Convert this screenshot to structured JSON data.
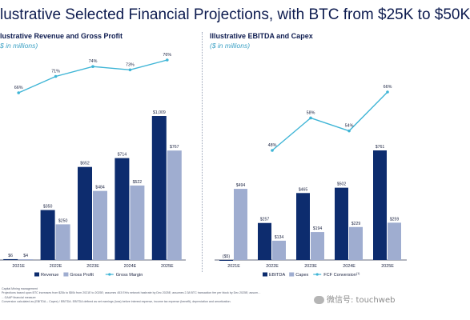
{
  "page": {
    "title": "lustrative Selected Financial Projections, with BTC from $25K to $50K",
    "footnotes": [
      "Capital Mining management",
      "Projections based upon BTC increases from $25k to $50k from 2021E to 2025E; assumes 453 EH/s network hashrate by Dec 2025E; assumes 2.38 BTC transaction fee per block by Dec 2025E; assum…",
      "…GAAP financial measure",
      "Conversion calculated as (EBITDA – Capex) / EBITDA. EBITDA defined as net earnings (loss) before interest expense, income tax expense (benefit), depreciation and amortization."
    ],
    "watermark": "微信号: touchweb"
  },
  "chart_data": [
    {
      "type": "bar",
      "title": "lustrative Revenue and Gross Profit",
      "subtitle": "$ in millions)",
      "categories": [
        "2021E",
        "2022E",
        "2023E",
        "2024E",
        "2025E"
      ],
      "series": [
        {
          "name": "Revenue",
          "color": "#0d2c6e",
          "values": [
            6,
            350,
            652,
            714,
            1009
          ],
          "labels": [
            "$6",
            "$350",
            "$652",
            "$714",
            "$1,009"
          ]
        },
        {
          "name": "Gross Profit",
          "color": "#9fadd0",
          "values": [
            4,
            250,
            484,
            522,
            767
          ],
          "labels": [
            "$4",
            "$250",
            "$484",
            "$522",
            "$767"
          ]
        }
      ],
      "line": {
        "name": "Gross Margin",
        "color": "#3fb5d6",
        "values": [
          66,
          71,
          74,
          73,
          76
        ],
        "labels": [
          "66%",
          "71%",
          "74%",
          "73%",
          "76%"
        ]
      }
    },
    {
      "type": "bar",
      "title": "Illustrative EBITDA and Capex",
      "subtitle": "($ in millions)",
      "categories": [
        "2021E",
        "2022E",
        "2023E",
        "2024E",
        "2025E"
      ],
      "series": [
        {
          "name": "EBITDA",
          "color": "#0d2c6e",
          "values": [
            -5,
            257,
            465,
            502,
            761
          ],
          "labels": [
            "($5)",
            "$257",
            "$465",
            "$502",
            "$761"
          ]
        },
        {
          "name": "Capex",
          "color": "#9fadd0",
          "values": [
            494,
            134,
            194,
            229,
            259
          ],
          "labels": [
            "$494",
            "$134",
            "$194",
            "$229",
            "$259"
          ]
        }
      ],
      "line": {
        "name": "FCF Conversion",
        "name_sup": "(1)",
        "color": "#3fb5d6",
        "values": [
          null,
          48,
          58,
          54,
          66
        ],
        "labels": [
          "",
          "48%",
          "58%",
          "54%",
          "66%"
        ]
      }
    }
  ]
}
